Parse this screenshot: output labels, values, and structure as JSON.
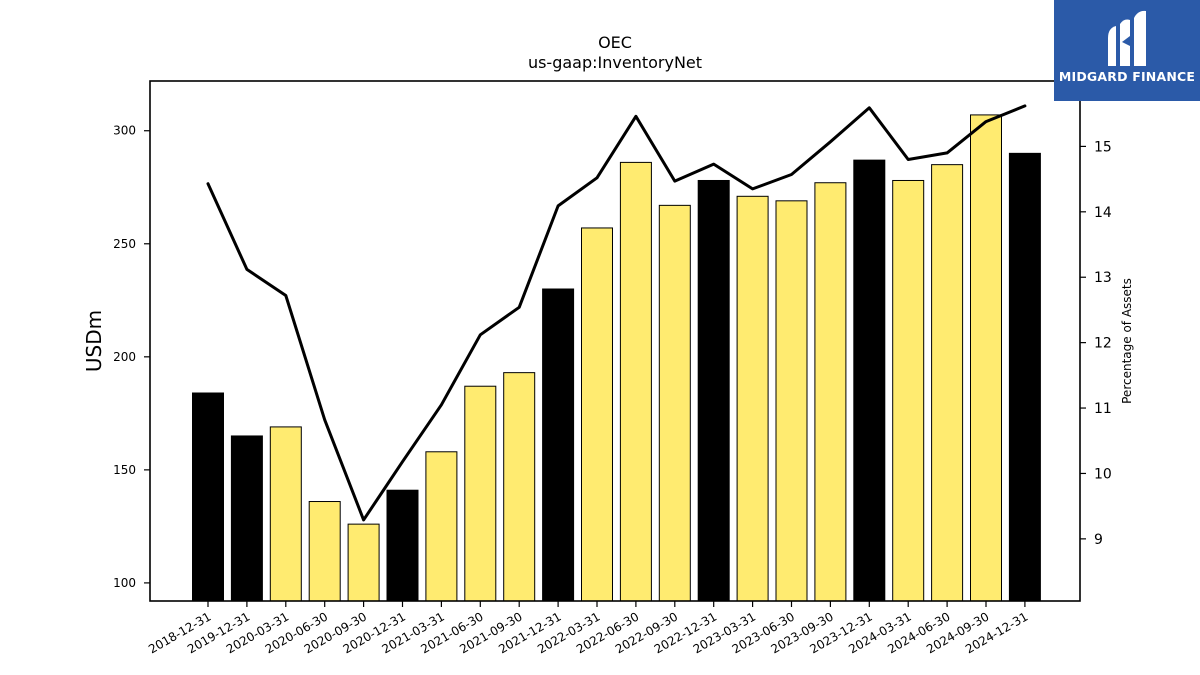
{
  "chart_data": {
    "type": "bar",
    "title": "OEC",
    "subtitle": "us-gaap:InventoryNet",
    "ylabel": "USDm",
    "y2label": "Percentage of Assets",
    "ylim": [
      92,
      322
    ],
    "y2lim": [
      8.05,
      16.0
    ],
    "yticks": [
      100,
      150,
      200,
      250,
      300
    ],
    "y2ticks": [
      9,
      10,
      11,
      12,
      13,
      14,
      15
    ],
    "categories": [
      "2018-12-31",
      "2019-12-31",
      "2020-03-31",
      "2020-06-30",
      "2020-09-30",
      "2020-12-31",
      "2021-03-31",
      "2021-06-30",
      "2021-09-30",
      "2021-12-31",
      "2022-03-31",
      "2022-06-30",
      "2022-09-30",
      "2022-12-31",
      "2023-03-31",
      "2023-06-30",
      "2023-09-30",
      "2023-12-31",
      "2024-03-31",
      "2024-06-30",
      "2024-09-30",
      "2024-12-31"
    ],
    "series": [
      {
        "type": "bar",
        "values": [
          184,
          165,
          169,
          136,
          126,
          141,
          158,
          187,
          193,
          230,
          257,
          286,
          267,
          278,
          271,
          269,
          277,
          287,
          278,
          285,
          307,
          290
        ],
        "fiscal_year_end": [
          true,
          true,
          false,
          false,
          false,
          true,
          false,
          false,
          false,
          true,
          false,
          false,
          false,
          true,
          false,
          false,
          false,
          true,
          false,
          false,
          false,
          true
        ]
      },
      {
        "type": "line",
        "axis": "right",
        "values": [
          14.43,
          13.12,
          12.72,
          10.82,
          9.29,
          10.18,
          11.05,
          12.12,
          12.54,
          14.09,
          14.52,
          15.46,
          14.47,
          14.73,
          14.35,
          14.57,
          15.07,
          15.59,
          14.8,
          14.9,
          15.38,
          15.62
        ]
      }
    ],
    "colors": {
      "bar_quarter": "#ffeb70",
      "bar_annual": "#000000",
      "line": "#000000",
      "edge": "#000000"
    },
    "grid": false,
    "legend": "none"
  },
  "logo": {
    "text": "MIDGARD FINANCE",
    "icon": "midgard-logo-icon",
    "color": "#2b5aa8"
  }
}
